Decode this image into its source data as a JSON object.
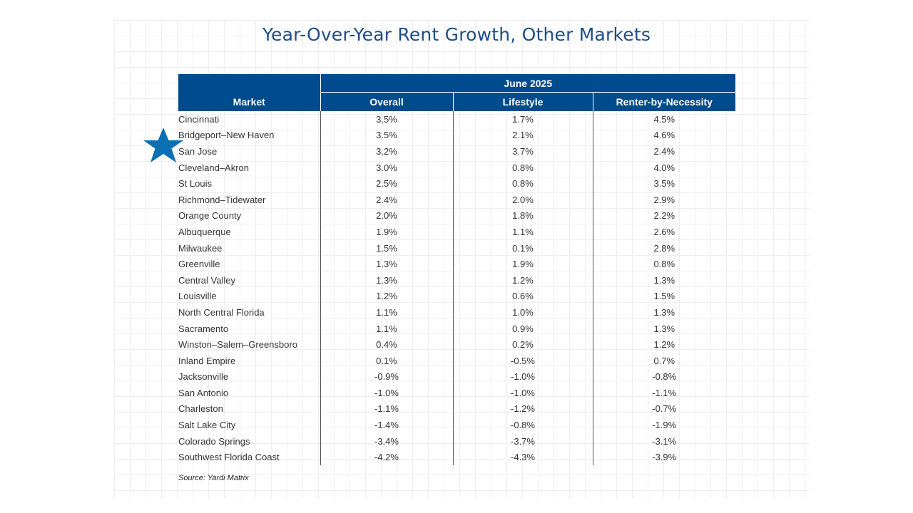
{
  "chart_data": {
    "type": "table",
    "title": "Year-Over-Year Rent Growth, Other Markets",
    "period_header": "June 2025",
    "columns": [
      "Market",
      "Overall",
      "Lifestyle",
      "Renter-by-Necessity"
    ],
    "rows": [
      [
        "Cincinnati",
        "3.5%",
        "1.7%",
        "4.5%"
      ],
      [
        "Bridgeport–New Haven",
        "3.5%",
        "2.1%",
        "4.6%"
      ],
      [
        "San Jose",
        "3.2%",
        "3.7%",
        "2.4%"
      ],
      [
        "Cleveland–Akron",
        "3.0%",
        "0.8%",
        "4.0%"
      ],
      [
        "St Louis",
        "2.5%",
        "0.8%",
        "3.5%"
      ],
      [
        "Richmond–Tidewater",
        "2.4%",
        "2.0%",
        "2.9%"
      ],
      [
        "Orange County",
        "2.0%",
        "1.8%",
        "2.2%"
      ],
      [
        "Albuquerque",
        "1.9%",
        "1.1%",
        "2.6%"
      ],
      [
        "Milwaukee",
        "1.5%",
        "0.1%",
        "2.8%"
      ],
      [
        "Greenville",
        "1.3%",
        "1.9%",
        "0.8%"
      ],
      [
        "Central Valley",
        "1.3%",
        "1.2%",
        "1.3%"
      ],
      [
        "Louisville",
        "1.2%",
        "0.6%",
        "1.5%"
      ],
      [
        "North Central Florida",
        "1.1%",
        "1.0%",
        "1.3%"
      ],
      [
        "Sacramento",
        "1.1%",
        "0.9%",
        "1.3%"
      ],
      [
        "Winston–Salem–Greensboro",
        "0.4%",
        "0.2%",
        "1.2%"
      ],
      [
        "Inland Empire",
        "0.1%",
        "-0.5%",
        "0.7%"
      ],
      [
        "Jacksonville",
        "-0.9%",
        "-1.0%",
        "-0.8%"
      ],
      [
        "San Antonio",
        "-1.0%",
        "-1.0%",
        "-1.1%"
      ],
      [
        "Charleston",
        "-1.1%",
        "-1.2%",
        "-0.7%"
      ],
      [
        "Salt Lake City",
        "-1.4%",
        "-0.8%",
        "-1.9%"
      ],
      [
        "Colorado Springs",
        "-3.4%",
        "-3.7%",
        "-3.1%"
      ],
      [
        "Southwest Florida Coast",
        "-4.2%",
        "-4.3%",
        "-3.9%"
      ]
    ],
    "highlighted_market": "San Jose",
    "source": "Source: Yardi Matrix"
  },
  "colors": {
    "header_bg": "#004b8d",
    "title": "#1f4e86",
    "star": "#0a6fb3"
  },
  "icons": {
    "highlight": "star-icon"
  }
}
